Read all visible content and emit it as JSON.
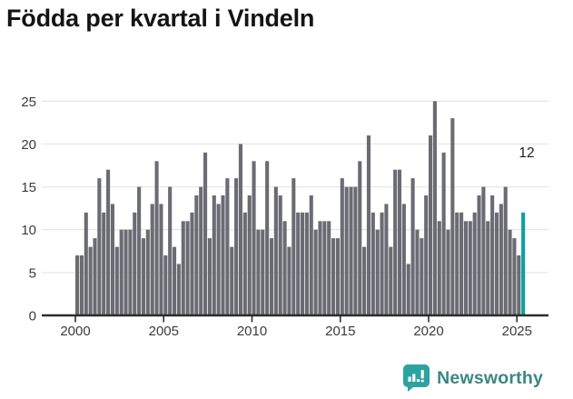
{
  "title": "Födda per kvartal i Vindeln",
  "colors": {
    "bar": "#6b6b73",
    "highlight": "#0ba1a0",
    "grid": "#e7e7e7",
    "axis": "#2c2c2c",
    "tick_text": "#3b3b3b",
    "annotation_text": "#1f1f1f",
    "logo_icon": "#2da3a1",
    "logo_text": "#3b8684"
  },
  "chart_data": {
    "type": "bar",
    "title": "Födda per kvartal i Vindeln",
    "x_unit": "quarter",
    "x_start": "2000-Q1",
    "x_end": "2025-Q2",
    "x_tick_labels": [
      "2000",
      "2005",
      "2010",
      "2015",
      "2020",
      "2025"
    ],
    "y_ticks": [
      0,
      5,
      10,
      15,
      20,
      25
    ],
    "ylim": [
      0,
      25
    ],
    "grid": true,
    "values": [
      7,
      7,
      12,
      8,
      9,
      16,
      12,
      17,
      13,
      8,
      10,
      10,
      10,
      12,
      15,
      9,
      10,
      13,
      18,
      13,
      7,
      15,
      8,
      6,
      11,
      11,
      12,
      14,
      15,
      19,
      9,
      14,
      13,
      14,
      16,
      8,
      16,
      20,
      12,
      14,
      18,
      10,
      10,
      18,
      9,
      15,
      14,
      11,
      8,
      16,
      12,
      12,
      12,
      14,
      10,
      11,
      11,
      11,
      9,
      9,
      16,
      15,
      15,
      15,
      18,
      8,
      21,
      12,
      10,
      12,
      13,
      8,
      17,
      17,
      13,
      6,
      16,
      10,
      9,
      14,
      21,
      25,
      11,
      19,
      10,
      23,
      12,
      12,
      11,
      11,
      12,
      14,
      15,
      11,
      14,
      12,
      13,
      15,
      10,
      9,
      7,
      12
    ],
    "highlight": {
      "index": 101,
      "quarter": "2025-Q2",
      "value": 12,
      "label": "12"
    }
  },
  "footer": {
    "brand": "Newsworthy",
    "logo_icon": "newsworthy-chart-bubble-icon"
  }
}
